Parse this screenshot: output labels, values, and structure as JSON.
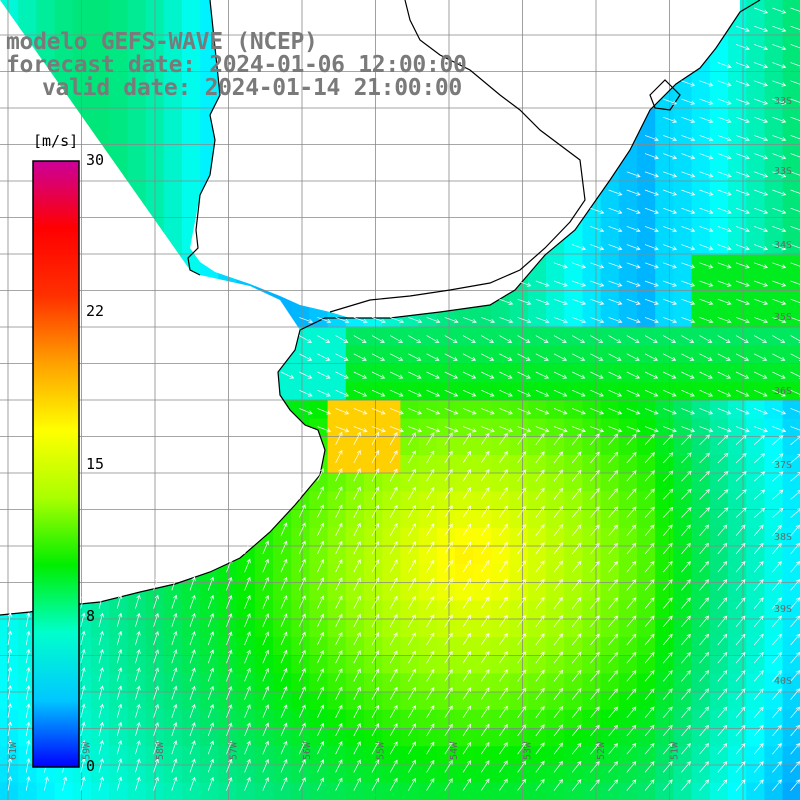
{
  "header": {
    "line1": "modelo GEFS-WAVE (NCEP)",
    "line2": "forecast date: 2024-01-06 12:00:00",
    "line3": "valid date: 2024-01-14 21:00:00"
  },
  "colorbar": {
    "unit": "[m/s]",
    "ticks": [
      "30",
      "22",
      "15",
      "8",
      "0"
    ],
    "colors": [
      "#0000ff",
      "#00c8ff",
      "#00ffcc",
      "#00ee00",
      "#aaff00",
      "#ffff00",
      "#ffa000",
      "#ff3000",
      "#ff0000",
      "#cc0099"
    ]
  },
  "map": {
    "lon_labels": [
      "61W",
      "59W",
      "58W",
      "57W",
      "56W",
      "55W",
      "54W",
      "53W",
      "52W",
      "51W"
    ],
    "lat_labels": [
      "33S",
      "33S",
      "34S",
      "35S",
      "36S",
      "37S",
      "38S",
      "39S",
      "40S"
    ],
    "land_color": "#ffffff",
    "coast_color": "#000000",
    "grid_color": "#888888",
    "arrow_color": "#ffffff"
  }
}
